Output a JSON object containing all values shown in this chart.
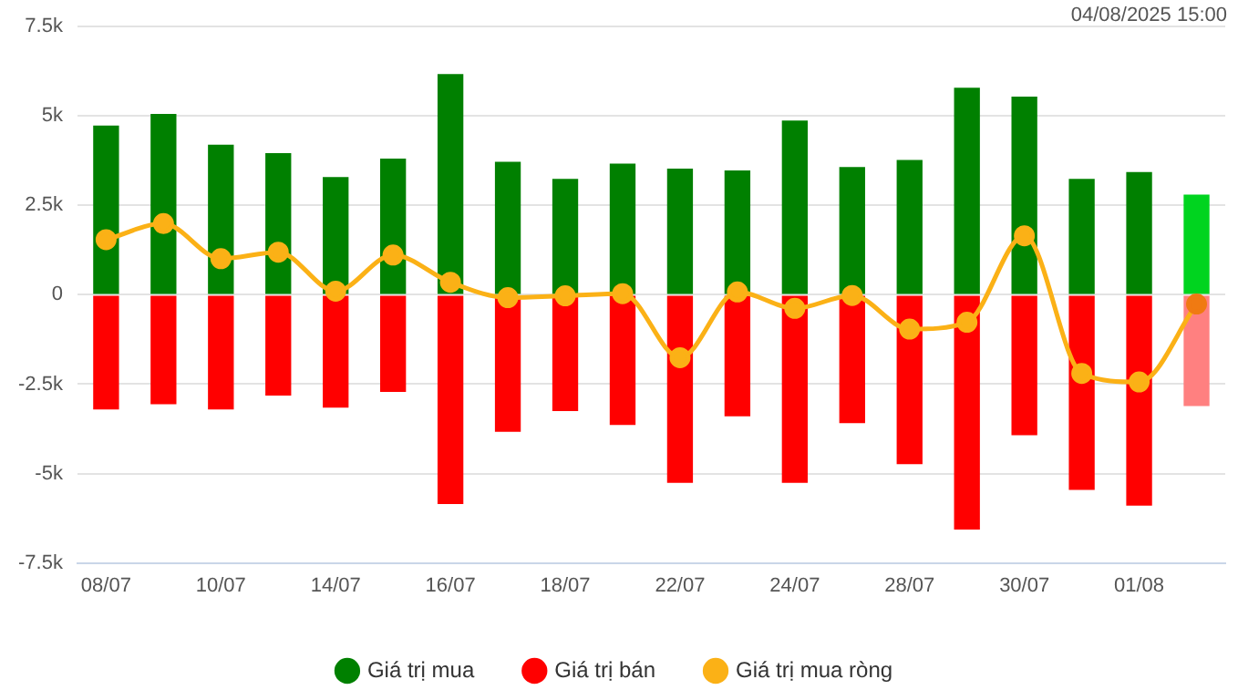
{
  "chart_data": {
    "type": "bar",
    "stacked": true,
    "grid": "y",
    "legend": "bottom",
    "marker": "circle",
    "annotations": [
      "04/08/2025 15:00"
    ],
    "categories": [
      "08/07",
      null,
      "10/07",
      null,
      "14/07",
      null,
      "16/07",
      null,
      "18/07",
      null,
      "22/07",
      null,
      "24/07",
      null,
      "28/07",
      null,
      "30/07",
      null,
      "01/08",
      null
    ],
    "ylim": [
      -7500,
      7500
    ],
    "yticks": [
      {
        "value": -7500,
        "label": "-7.5k"
      },
      {
        "value": -5000,
        "label": "-5k"
      },
      {
        "value": -2500,
        "label": "-2.5k"
      },
      0,
      {
        "value": 2500,
        "label": "2.5k"
      },
      {
        "value": 5000,
        "label": "5k"
      },
      {
        "value": 7500,
        "label": "7.5k"
      }
    ],
    "series": [
      {
        "name": "Giá trị mua",
        "color": "#008000",
        "colors": [
          "#008000",
          "#008000",
          "#008000",
          "#008000",
          "#008000",
          "#008000",
          "#008000",
          "#008000",
          "#008000",
          "#008000",
          "#008000",
          "#008000",
          "#008000",
          "#008000",
          "#008000",
          "#008000",
          "#008000",
          "#008000",
          "#008000",
          "#00d41f"
        ],
        "values": [
          4730,
          5060,
          4200,
          3960,
          3290,
          3810,
          6170,
          3720,
          3240,
          3670,
          3530,
          3480,
          4870,
          3570,
          3770,
          5790,
          5540,
          3240,
          3430,
          2800
        ]
      },
      {
        "name": "Giá trị bán",
        "color": "#ff0000",
        "colors": [
          "#ff0000",
          "#ff0000",
          "#ff0000",
          "#ff0000",
          "#ff0000",
          "#ff0000",
          "#ff0000",
          "#ff0000",
          "#ff0000",
          "#ff0000",
          "#ff0000",
          "#ff0000",
          "#ff0000",
          "#ff0000",
          "#ff0000",
          "#ff0000",
          "#ff0000",
          "#ff0000",
          "#ff0000",
          "#ff8080"
        ],
        "values": [
          -3210,
          -3060,
          -3210,
          -2820,
          -3160,
          -2720,
          -5850,
          -3830,
          -3250,
          -3640,
          -5260,
          -3400,
          -5260,
          -3590,
          -4740,
          -6570,
          -3930,
          -5460,
          -5900,
          -3110
        ]
      },
      {
        "name": "Giá trị mua ròng",
        "type": "line",
        "color": "#fbb116",
        "colors": [
          "#fbb116",
          "#fbb116",
          "#fbb116",
          "#fbb116",
          "#fbb116",
          "#fbb116",
          "#fbb116",
          "#fbb116",
          "#fbb116",
          "#fbb116",
          "#fbb116",
          "#fbb116",
          "#fbb116",
          "#fbb116",
          "#fbb116",
          "#fbb116",
          "#fbb116",
          "#fbb116",
          "#fbb116",
          "#f07a12"
        ],
        "values": [
          1540,
          1990,
          1010,
          1190,
          100,
          1110,
          350,
          -80,
          -30,
          30,
          -1760,
          80,
          -380,
          -20,
          -960,
          -770,
          1650,
          -2200,
          -2440,
          -260
        ]
      }
    ]
  }
}
